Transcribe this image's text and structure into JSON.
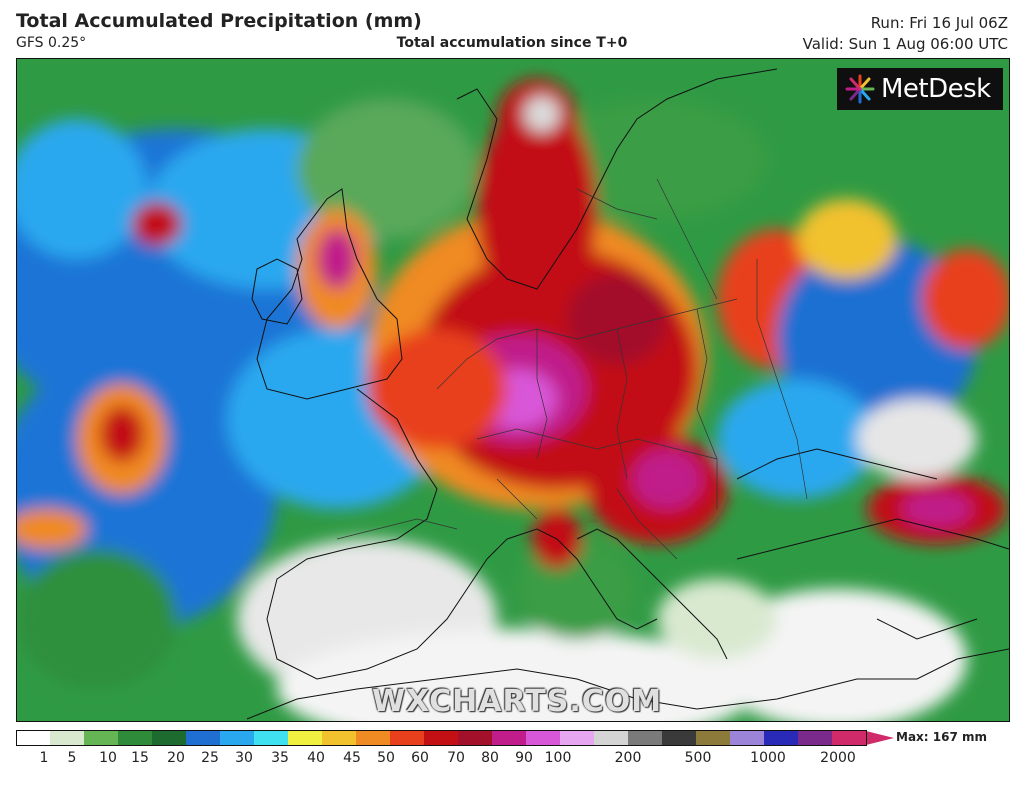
{
  "header": {
    "title": "Total Accumulated Precipitation (mm)",
    "model": "GFS 0.25°",
    "subtitle": "Total accumulation since T+0",
    "run": "Run: Fri 16 Jul 06Z",
    "valid": "Valid: Sun 1 Aug 06:00 UTC"
  },
  "logo": {
    "text": "MetDesk"
  },
  "watermark": "WXCHARTS.COM",
  "colorbar": {
    "max_label": "Max: 167 mm",
    "ticks": [
      "1",
      "5",
      "10",
      "15",
      "20",
      "25",
      "30",
      "35",
      "40",
      "45",
      "50",
      "60",
      "70",
      "80",
      "90",
      "100",
      "200",
      "500",
      "1000",
      "2000"
    ],
    "colors": [
      "#ffffff",
      "#d9e9d0",
      "#66b554",
      "#2e8b3a",
      "#1d6b2e",
      "#1f6fd2",
      "#29a8ef",
      "#3fe0f0",
      "#f0f040",
      "#f2c12e",
      "#f08a22",
      "#e8401c",
      "#c21014",
      "#a3102a",
      "#c01d8a",
      "#d856d8",
      "#e6a6f0",
      "#d4d4d4",
      "#7a7a7a",
      "#3a3a3a",
      "#8c7a3a",
      "#9c84d8",
      "#2a2ab8",
      "#7a2a8a",
      "#d02a6a"
    ]
  }
}
